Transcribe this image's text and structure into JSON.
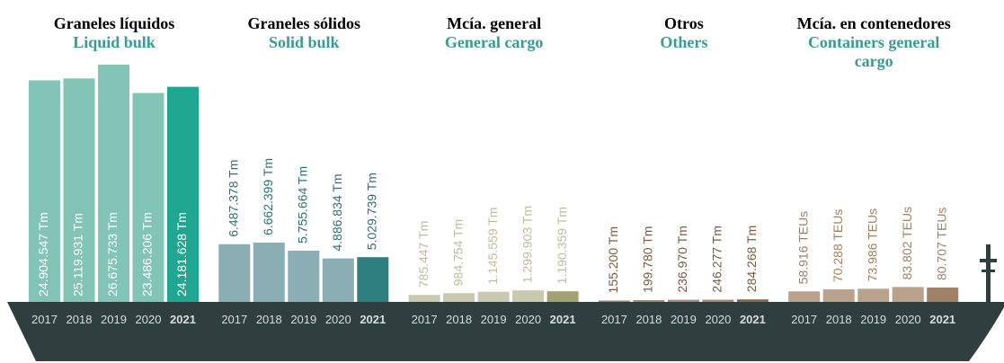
{
  "chart_data": [
    {
      "type": "bar",
      "title": "Graneles líquidos",
      "subtitle": "Liquid bulk",
      "categories": [
        "2017",
        "2018",
        "2019",
        "2020",
        "2021"
      ],
      "values": [
        24904547,
        25119931,
        26675733,
        23486206,
        24181628
      ],
      "value_labels": [
        "24.904.547 Tm",
        "25.119.931 Tm",
        "26.675.733 Tm",
        "23.486.206 Tm",
        "24.181.628 Tm"
      ],
      "color": "#82c4b6",
      "highlight_color": "#1fa791",
      "label_color": "#ffffff",
      "label_inside": true,
      "ylim": [
        0,
        30000000
      ]
    },
    {
      "type": "bar",
      "title": "Graneles sólidos",
      "subtitle": "Solid bulk",
      "categories": [
        "2017",
        "2018",
        "2019",
        "2020",
        "2021"
      ],
      "values": [
        6487378,
        6662399,
        5755664,
        4886834,
        5029739
      ],
      "value_labels": [
        "6.487.378 Tm",
        "6.662.399 Tm",
        "5.755.664 Tm",
        "4.886.834 Tm",
        "5.029.739 Tm"
      ],
      "color": "#8aaeb3",
      "highlight_color": "#2e7f80",
      "label_color": "#2e6f78",
      "label_inside": false,
      "ylim": [
        0,
        30000000
      ]
    },
    {
      "type": "bar",
      "title": "Mcía. general",
      "subtitle": "General cargo",
      "categories": [
        "2017",
        "2018",
        "2019",
        "2020",
        "2021"
      ],
      "values": [
        785447,
        984754,
        1145559,
        1299903,
        1190359
      ],
      "value_labels": [
        "785.447 Tm",
        "984.754 Tm",
        "1.145.559 Tm",
        "1.299.903 Tm",
        "1.190.359 Tm"
      ],
      "color": "#c9c9b0",
      "highlight_color": "#a3a072",
      "label_color": "#bdbd9c",
      "label_inside": false,
      "ylim": [
        0,
        30000000
      ]
    },
    {
      "type": "bar",
      "title": "Otros",
      "subtitle": "Others",
      "categories": [
        "2017",
        "2018",
        "2019",
        "2020",
        "2021"
      ],
      "values": [
        155200,
        199780,
        236970,
        246277,
        284268
      ],
      "value_labels": [
        "155.200 Tm",
        "199.780 Tm",
        "236.970 Tm",
        "246.277 Tm",
        "284.268 Tm"
      ],
      "color": "#a8876e",
      "highlight_color": "#8a6a4d",
      "label_color": "#7a5a40",
      "label_inside": false,
      "ylim": [
        0,
        30000000
      ]
    },
    {
      "type": "bar",
      "title": "Mcía. en contenedores",
      "subtitle": "Containers general cargo",
      "categories": [
        "2017",
        "2018",
        "2019",
        "2020",
        "2021"
      ],
      "values": [
        58916,
        70288,
        73986,
        83802,
        80707
      ],
      "value_labels": [
        "58.916 TEUs",
        "70.288 TEUs",
        "73.986 TEUs",
        "83.802 TEUs",
        "80.707 TEUs"
      ],
      "color": "#b9a18b",
      "highlight_color": "#a08066",
      "label_color": "#a0805f",
      "label_inside": false,
      "ylim": [
        0,
        1500000
      ]
    }
  ]
}
